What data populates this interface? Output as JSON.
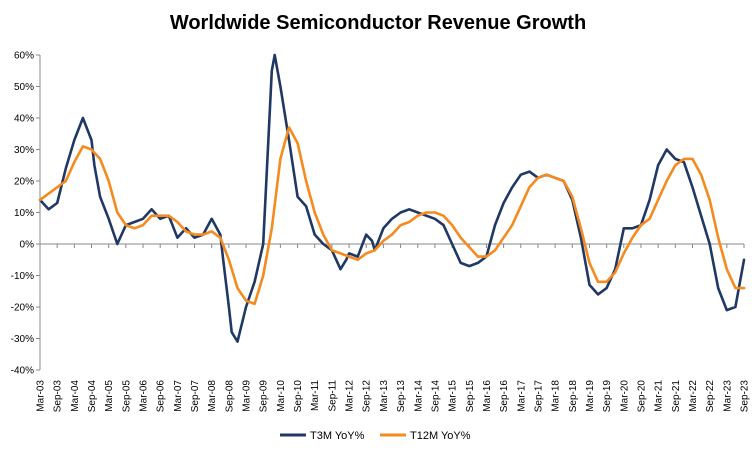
{
  "chart_data": {
    "type": "line",
    "title": "Worldwide Semiconductor Revenue Growth",
    "xlabel": "",
    "ylabel": "",
    "ylim": [
      -40,
      60
    ],
    "y_ticks": [
      -40,
      -30,
      -20,
      -10,
      0,
      10,
      20,
      30,
      40,
      50,
      60
    ],
    "y_tick_labels": [
      "-40%",
      "-30%",
      "-20%",
      "-10%",
      "0%",
      "10%",
      "20%",
      "30%",
      "40%",
      "50%",
      "60%"
    ],
    "x_range": [
      "Mar-03",
      "Sep-23"
    ],
    "x_tick_labels": [
      "Mar-03",
      "Sep-03",
      "Mar-04",
      "Sep-04",
      "Mar-05",
      "Sep-05",
      "Mar-06",
      "Sep-06",
      "Mar-07",
      "Sep-07",
      "Mar-08",
      "Sep-08",
      "Mar-09",
      "Sep-09",
      "Mar-10",
      "Sep-10",
      "Mar-11",
      "Sep-11",
      "Mar-12",
      "Sep-12",
      "Mar-13",
      "Sep-13",
      "Mar-14",
      "Sep-14",
      "Mar-15",
      "Sep-15",
      "Mar-16",
      "Sep-16",
      "Mar-17",
      "Sep-17",
      "Mar-18",
      "Sep-18",
      "Mar-19",
      "Sep-19",
      "Mar-20",
      "Sep-20",
      "Mar-21",
      "Sep-21",
      "Mar-22",
      "Sep-22",
      "Mar-23",
      "Sep-23"
    ],
    "grid": false,
    "legend_position": "bottom",
    "series": [
      {
        "name": "T3M YoY%",
        "color": "#1f3864",
        "points": [
          [
            "Mar-03",
            14
          ],
          [
            "Jun-03",
            11
          ],
          [
            "Sep-03",
            13
          ],
          [
            "Dec-03",
            24
          ],
          [
            "Mar-04",
            33
          ],
          [
            "Jun-04",
            40
          ],
          [
            "Sep-04",
            33
          ],
          [
            "Oct-04",
            25
          ],
          [
            "Dec-04",
            15
          ],
          [
            "Mar-05",
            8
          ],
          [
            "Jun-05",
            0
          ],
          [
            "Sep-05",
            6
          ],
          [
            "Dec-05",
            7
          ],
          [
            "Mar-06",
            8
          ],
          [
            "Jun-06",
            11
          ],
          [
            "Sep-06",
            8
          ],
          [
            "Dec-06",
            9
          ],
          [
            "Mar-07",
            2
          ],
          [
            "Jun-07",
            5
          ],
          [
            "Sep-07",
            2
          ],
          [
            "Dec-07",
            3
          ],
          [
            "Mar-08",
            8
          ],
          [
            "Jun-08",
            3
          ],
          [
            "Jul-08",
            -5
          ],
          [
            "Sep-08",
            -20
          ],
          [
            "Oct-08",
            -28
          ],
          [
            "Dec-08",
            -31
          ],
          [
            "Mar-09",
            -20
          ],
          [
            "Jun-09",
            -12
          ],
          [
            "Sep-09",
            0
          ],
          [
            "Dec-09",
            55
          ],
          [
            "Jan-10",
            60
          ],
          [
            "Mar-10",
            50
          ],
          [
            "Jun-10",
            33
          ],
          [
            "Sep-10",
            15
          ],
          [
            "Dec-10",
            12
          ],
          [
            "Mar-11",
            3
          ],
          [
            "Jun-11",
            0
          ],
          [
            "Sep-11",
            -2
          ],
          [
            "Dec-11",
            -8
          ],
          [
            "Feb-12",
            -5
          ],
          [
            "Mar-12",
            -3
          ],
          [
            "Jun-12",
            -4
          ],
          [
            "Sep-12",
            3
          ],
          [
            "Nov-12",
            1
          ],
          [
            "Dec-12",
            -2
          ],
          [
            "Mar-13",
            5
          ],
          [
            "Jun-13",
            8
          ],
          [
            "Sep-13",
            10
          ],
          [
            "Dec-13",
            11
          ],
          [
            "Mar-14",
            10
          ],
          [
            "Jun-14",
            9
          ],
          [
            "Sep-14",
            8
          ],
          [
            "Dec-14",
            6
          ],
          [
            "Mar-15",
            0
          ],
          [
            "Jun-15",
            -6
          ],
          [
            "Sep-15",
            -7
          ],
          [
            "Dec-15",
            -6
          ],
          [
            "Mar-16",
            -4
          ],
          [
            "Jun-16",
            6
          ],
          [
            "Sep-16",
            13
          ],
          [
            "Dec-16",
            18
          ],
          [
            "Mar-17",
            22
          ],
          [
            "Jun-17",
            23
          ],
          [
            "Sep-17",
            21
          ],
          [
            "Dec-17",
            22
          ],
          [
            "Mar-18",
            21
          ],
          [
            "Jun-18",
            20
          ],
          [
            "Sep-18",
            14
          ],
          [
            "Dec-18",
            2
          ],
          [
            "Mar-19",
            -13
          ],
          [
            "Jun-19",
            -16
          ],
          [
            "Sep-19",
            -14
          ],
          [
            "Dec-19",
            -8
          ],
          [
            "Mar-20",
            5
          ],
          [
            "Jun-20",
            5
          ],
          [
            "Sep-20",
            6
          ],
          [
            "Dec-20",
            14
          ],
          [
            "Mar-21",
            25
          ],
          [
            "Jun-21",
            30
          ],
          [
            "Sep-21",
            27
          ],
          [
            "Dec-21",
            26
          ],
          [
            "Mar-22",
            18
          ],
          [
            "Jun-22",
            9
          ],
          [
            "Sep-22",
            0
          ],
          [
            "Dec-22",
            -14
          ],
          [
            "Mar-23",
            -21
          ],
          [
            "Jun-23",
            -20
          ],
          [
            "Sep-23",
            -5
          ]
        ]
      },
      {
        "name": "T12M YoY%",
        "color": "#f58a1f",
        "points": [
          [
            "Mar-03",
            14
          ],
          [
            "Jun-03",
            16
          ],
          [
            "Sep-03",
            18
          ],
          [
            "Dec-03",
            20
          ],
          [
            "Mar-04",
            26
          ],
          [
            "Jun-04",
            31
          ],
          [
            "Sep-04",
            30
          ],
          [
            "Dec-04",
            27
          ],
          [
            "Mar-05",
            20
          ],
          [
            "Jun-05",
            10
          ],
          [
            "Sep-05",
            6
          ],
          [
            "Dec-05",
            5
          ],
          [
            "Mar-06",
            6
          ],
          [
            "Jun-06",
            9
          ],
          [
            "Sep-06",
            9
          ],
          [
            "Dec-06",
            9
          ],
          [
            "Mar-07",
            7
          ],
          [
            "Jun-07",
            4
          ],
          [
            "Sep-07",
            3
          ],
          [
            "Dec-07",
            3
          ],
          [
            "Mar-08",
            4
          ],
          [
            "Jun-08",
            2
          ],
          [
            "Sep-08",
            -5
          ],
          [
            "Dec-08",
            -14
          ],
          [
            "Mar-09",
            -18
          ],
          [
            "Jun-09",
            -19
          ],
          [
            "Sep-09",
            -10
          ],
          [
            "Dec-09",
            5
          ],
          [
            "Mar-10",
            27
          ],
          [
            "Jun-10",
            37
          ],
          [
            "Sep-10",
            32
          ],
          [
            "Dec-10",
            20
          ],
          [
            "Mar-11",
            10
          ],
          [
            "Jun-11",
            3
          ],
          [
            "Sep-11",
            -2
          ],
          [
            "Dec-11",
            -3
          ],
          [
            "Mar-12",
            -4
          ],
          [
            "Jun-12",
            -5
          ],
          [
            "Sep-12",
            -3
          ],
          [
            "Dec-12",
            -2
          ],
          [
            "Mar-13",
            1
          ],
          [
            "Jun-13",
            3
          ],
          [
            "Sep-13",
            6
          ],
          [
            "Dec-13",
            7
          ],
          [
            "Mar-14",
            9
          ],
          [
            "Jun-14",
            10
          ],
          [
            "Sep-14",
            10
          ],
          [
            "Dec-14",
            9
          ],
          [
            "Mar-15",
            6
          ],
          [
            "Jun-15",
            2
          ],
          [
            "Sep-15",
            -1
          ],
          [
            "Dec-15",
            -4
          ],
          [
            "Mar-16",
            -4
          ],
          [
            "Jun-16",
            -2
          ],
          [
            "Sep-16",
            2
          ],
          [
            "Dec-16",
            6
          ],
          [
            "Mar-17",
            12
          ],
          [
            "Jun-17",
            18
          ],
          [
            "Sep-17",
            21
          ],
          [
            "Dec-17",
            22
          ],
          [
            "Mar-18",
            21
          ],
          [
            "Jun-18",
            20
          ],
          [
            "Sep-18",
            15
          ],
          [
            "Dec-18",
            5
          ],
          [
            "Mar-19",
            -6
          ],
          [
            "Jun-19",
            -12
          ],
          [
            "Sep-19",
            -12
          ],
          [
            "Dec-19",
            -9
          ],
          [
            "Mar-20",
            -3
          ],
          [
            "Jun-20",
            2
          ],
          [
            "Sep-20",
            6
          ],
          [
            "Dec-20",
            8
          ],
          [
            "Mar-21",
            14
          ],
          [
            "Jun-21",
            20
          ],
          [
            "Sep-21",
            25
          ],
          [
            "Dec-21",
            27
          ],
          [
            "Mar-22",
            27
          ],
          [
            "Jun-22",
            22
          ],
          [
            "Sep-22",
            14
          ],
          [
            "Dec-22",
            2
          ],
          [
            "Mar-23",
            -8
          ],
          [
            "Jun-23",
            -14
          ],
          [
            "Sep-23",
            -14
          ]
        ]
      }
    ]
  }
}
